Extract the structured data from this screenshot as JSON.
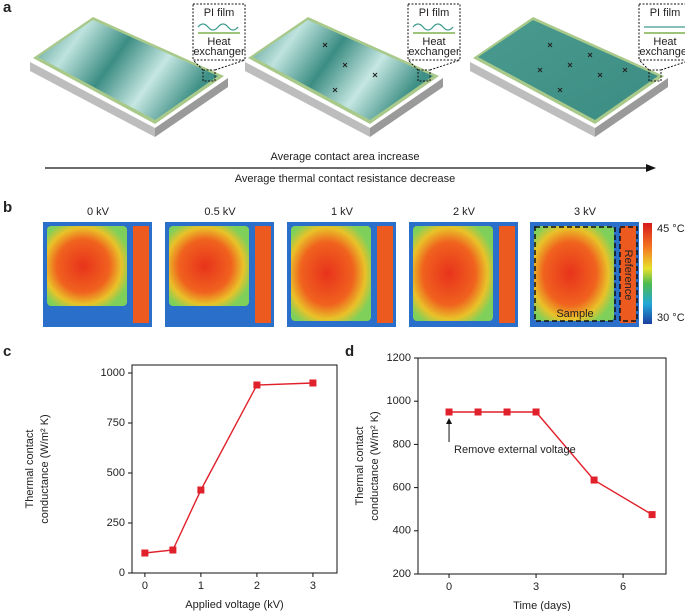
{
  "panel_labels": [
    "a",
    "b",
    "c",
    "d"
  ],
  "panel_a": {
    "film": "PI film",
    "exchanger": [
      "Heat",
      "exchanger"
    ],
    "arrow_top": "Average contact area increase",
    "arrow_bottom": "Average thermal contact resistance decrease"
  },
  "panel_b": {
    "voltages": [
      "0 kV",
      "0.5 kV",
      "1 kV",
      "2 kV",
      "3 kV"
    ],
    "colorbar": [
      "45 °C",
      "30 °C"
    ],
    "sample": "Sample",
    "reference": "Reference"
  },
  "chart_data": [
    {
      "type": "line",
      "x_label": "Applied voltage (kV)",
      "y_label": [
        "Thermal contact",
        "conductance (W/m² K)"
      ],
      "x": [
        0,
        0.5,
        1,
        2,
        3
      ],
      "values": [
        100,
        115,
        415,
        940,
        950
      ],
      "color": "#e0202a",
      "xlim": [
        -0.23,
        3.43
      ],
      "xticks": [
        0,
        1,
        2,
        3
      ],
      "ylim": [
        0,
        1040
      ],
      "yticks": [
        0,
        250,
        500,
        750,
        1000
      ]
    },
    {
      "type": "line",
      "x_label": "Time (days)",
      "y_label": [
        "Thermal contact",
        "conductance (W/m² K)"
      ],
      "x": [
        0,
        1,
        2,
        3,
        5,
        7
      ],
      "values": [
        950,
        950,
        950,
        950,
        635,
        475
      ],
      "color": "#e0202a",
      "xlim": [
        -1.07,
        7.48
      ],
      "xticks": [
        0,
        3,
        6
      ],
      "ylim": [
        200,
        1200
      ],
      "yticks": [
        200,
        400,
        600,
        800,
        1000,
        1200
      ],
      "annotation": "Remove external voltage"
    }
  ]
}
